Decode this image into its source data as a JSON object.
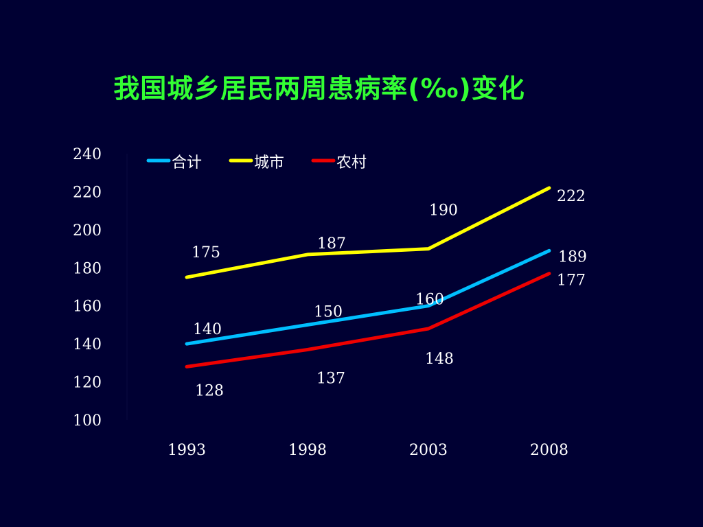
{
  "slide": {
    "title": "我国城乡居民两周患病率(‰)变化"
  },
  "colors": {
    "background": "#000033",
    "title": "#33FF33",
    "text": "#FFFFFF"
  },
  "chart_data": {
    "type": "line",
    "title": "我国城乡居民两周患病率(‰)变化",
    "xlabel": "",
    "ylabel": "",
    "ylim": [
      100,
      240
    ],
    "yticks": [
      100,
      120,
      140,
      160,
      180,
      200,
      220,
      240
    ],
    "x": [
      "1993",
      "1998",
      "2003",
      "2008"
    ],
    "legend_position": "top-left",
    "grid": false,
    "series": [
      {
        "name": "合计",
        "color": "#00BFFF",
        "values": [
          140,
          150,
          160,
          189
        ]
      },
      {
        "name": "城市",
        "color": "#FFFF00",
        "values": [
          175,
          187,
          190,
          222
        ]
      },
      {
        "name": "农村",
        "color": "#EE0000",
        "values": [
          128,
          137,
          148,
          177
        ]
      }
    ]
  }
}
